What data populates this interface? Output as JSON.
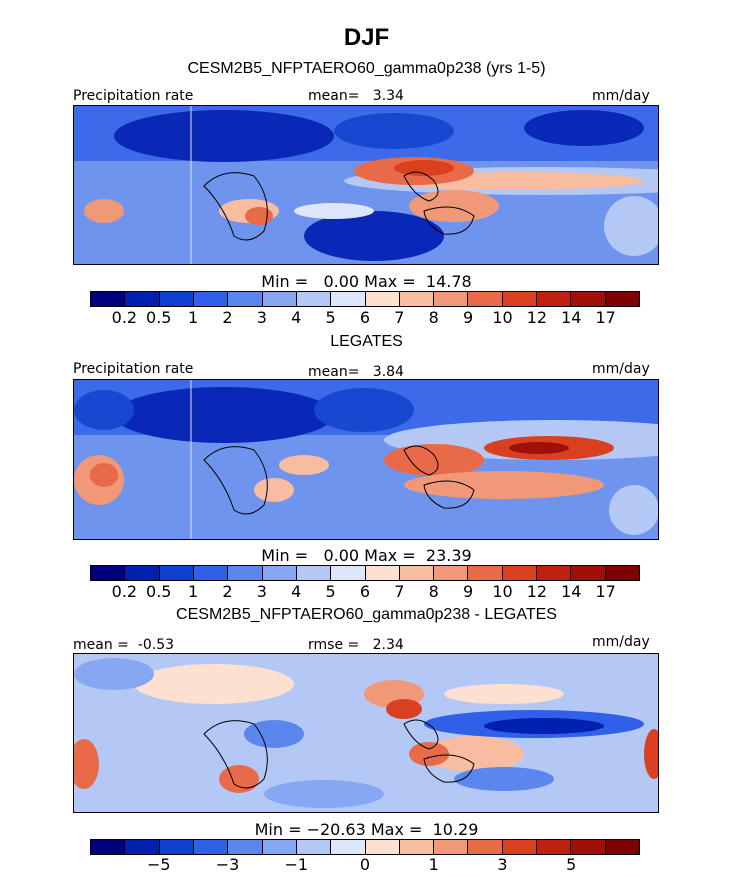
{
  "title": "DJF",
  "panels": [
    {
      "subtitle": "CESM2B5_NFPTAERO60_gamma0p238 (yrs 1-5)",
      "left_label": "Precipitation rate",
      "center_label": "mean=   3.34",
      "right_label": "mm/day",
      "minmax": "Min =   0.00 Max =  14.78",
      "colorbar": {
        "colors": [
          "#00007f",
          "#0020b0",
          "#1040d0",
          "#3060e8",
          "#5a86ee",
          "#86a8f2",
          "#b4c8f6",
          "#dde6fa",
          "#fde0d0",
          "#f8bca0",
          "#f09878",
          "#e86a48",
          "#d84020",
          "#c02010",
          "#a01008",
          "#7f0000"
        ],
        "ticks": [
          "0.2",
          "0.5",
          "1",
          "2",
          "3",
          "4",
          "5",
          "6",
          "7",
          "8",
          "9",
          "10",
          "12",
          "14",
          "17"
        ]
      }
    },
    {
      "subtitle": "LEGATES",
      "left_label": "Precipitation rate",
      "center_label": "mean=   3.84",
      "right_label": "mm/day",
      "minmax": "Min =   0.00 Max =  23.39",
      "colorbar": {
        "colors": [
          "#00007f",
          "#0020b0",
          "#1040d0",
          "#3060e8",
          "#5a86ee",
          "#86a8f2",
          "#b4c8f6",
          "#dde6fa",
          "#fde0d0",
          "#f8bca0",
          "#f09878",
          "#e86a48",
          "#d84020",
          "#c02010",
          "#a01008",
          "#7f0000"
        ],
        "ticks": [
          "0.2",
          "0.5",
          "1",
          "2",
          "3",
          "4",
          "5",
          "6",
          "7",
          "8",
          "9",
          "10",
          "12",
          "14",
          "17"
        ]
      }
    },
    {
      "subtitle": "CESM2B5_NFPTAERO60_gamma0p238 - LEGATES",
      "left_label": "mean =  -0.53",
      "center_label": "rmse =   2.34",
      "right_label": "mm/day",
      "minmax": "Min = −20.63 Max =  10.29",
      "colorbar": {
        "colors": [
          "#00007f",
          "#0020b0",
          "#1040d0",
          "#3060e8",
          "#5a86ee",
          "#86a8f2",
          "#b4c8f6",
          "#dde6fa",
          "#fde0d0",
          "#f8bca0",
          "#f09878",
          "#e86a48",
          "#d84020",
          "#c02010",
          "#a01008",
          "#7f0000"
        ],
        "ticks": [
          "−5",
          "−3",
          "−1",
          "0",
          "1",
          "3",
          "5"
        ]
      }
    }
  ]
}
